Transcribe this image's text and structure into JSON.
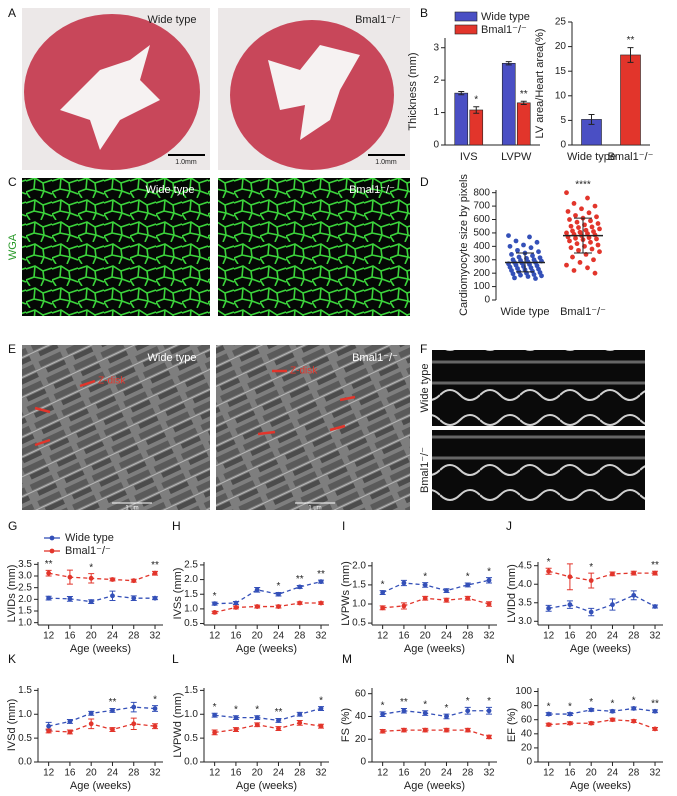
{
  "panel_labels": [
    "A",
    "B",
    "C",
    "D",
    "E",
    "F",
    "G",
    "H",
    "I",
    "J",
    "K",
    "L",
    "M",
    "N"
  ],
  "images": {
    "A": {
      "labels": [
        "Wide type",
        "Bmal1⁻/⁻"
      ],
      "scale_bars": [
        "1.0mm",
        "1.0mm"
      ]
    },
    "C": {
      "side_label": "WGA",
      "labels": [
        "Wide type",
        "Bmal1⁻/⁻"
      ]
    },
    "E": {
      "labels": [
        "Wide type",
        "Bmal1⁻/⁻"
      ],
      "annotations": [
        "Z-disk",
        "Z-disk"
      ],
      "scale_bars": [
        "1 um",
        "1 um"
      ]
    },
    "F": {
      "side_labels": [
        "Wide type",
        "Bmal1⁻/⁻"
      ]
    }
  },
  "chart_data": [
    {
      "type": "bar",
      "ylabel": "Thickness (mm)",
      "categories": [
        "IVS",
        "LVPW"
      ],
      "ylim": [
        0,
        3.3
      ],
      "yticks": [
        0,
        1,
        2,
        3
      ],
      "legend": "top",
      "series": [
        {
          "name": "Wide type",
          "color": "#4a4fc4",
          "values": [
            1.6,
            2.52
          ],
          "errors": [
            0.05,
            0.05
          ]
        },
        {
          "name": "Bmal1⁻/⁻",
          "color": "#e2352b",
          "values": [
            1.08,
            1.3
          ],
          "errors": [
            0.1,
            0.05
          ]
        }
      ],
      "annotations": [
        {
          "category": 0,
          "series": 1,
          "text": "*"
        },
        {
          "category": 1,
          "series": 1,
          "text": "**"
        }
      ]
    },
    {
      "type": "bar",
      "ylabel": "LV area/Heart area(%)",
      "categories": [
        "Wide type",
        "Bmal1⁻/⁻"
      ],
      "ylim": [
        0,
        25
      ],
      "yticks": [
        0,
        5,
        10,
        15,
        20,
        25
      ],
      "values": [
        5.2,
        18.3
      ],
      "errors": [
        1,
        1.5
      ],
      "colors": [
        "#4a4fc4",
        "#e2352b"
      ],
      "annotations": [
        {
          "category": 1,
          "text": "**"
        }
      ]
    },
    {
      "type": "strip",
      "ylabel": "Cardiomyocyte size by pixels",
      "categories": [
        "Wide type",
        "Bmal1⁻/⁻"
      ],
      "ylim": [
        0,
        820
      ],
      "yticks": [
        0,
        100,
        200,
        300,
        400,
        500,
        600,
        700,
        800
      ],
      "colors": [
        "#3450b8",
        "#e2352b"
      ],
      "means": [
        280,
        480
      ],
      "sds": [
        70,
        130
      ],
      "values": [
        [
          480,
          470,
          440,
          430,
          410,
          400,
          390,
          370,
          360,
          350,
          340,
          330,
          320,
          315,
          310,
          300,
          300,
          295,
          290,
          285,
          280,
          280,
          275,
          270,
          265,
          260,
          255,
          250,
          245,
          240,
          235,
          230,
          225,
          220,
          215,
          210,
          205,
          200,
          195,
          190,
          185,
          180,
          175,
          165,
          160
        ],
        [
          800,
          760,
          720,
          700,
          680,
          660,
          650,
          630,
          620,
          610,
          600,
          590,
          580,
          570,
          560,
          550,
          545,
          540,
          530,
          520,
          515,
          510,
          505,
          500,
          495,
          490,
          485,
          480,
          470,
          465,
          460,
          455,
          450,
          440,
          430,
          420,
          410,
          400,
          390,
          380,
          370,
          360,
          340,
          320,
          300,
          280,
          260,
          240,
          220,
          200
        ]
      ],
      "annotations": [
        {
          "category": 1,
          "text": "****"
        }
      ]
    },
    {
      "type": "line",
      "ylabel": "LVIDs (mm)",
      "xlabel": "Age (weeks)",
      "legend": "top-left",
      "x": [
        12,
        16,
        20,
        24,
        28,
        32
      ],
      "xlim": [
        10,
        33.5
      ],
      "xticks": [
        12,
        16,
        20,
        24,
        28,
        32
      ],
      "ylim": [
        0.9,
        3.6
      ],
      "yticks": [
        {
          "value": 1,
          "label": "1.0"
        },
        1.5,
        {
          "value": 2,
          "label": "2.0"
        },
        2.5,
        {
          "value": 3,
          "label": "3.0"
        },
        3.5
      ],
      "series": [
        {
          "name": "Wide type",
          "color": "#3450b8",
          "values": [
            2.05,
            2.02,
            1.9,
            2.15,
            2.05,
            2.05
          ],
          "errors": [
            0.08,
            0.1,
            0.08,
            0.2,
            0.1,
            0.06
          ]
        },
        {
          "name": "Bmal1⁻/⁻",
          "color": "#e2352b",
          "values": [
            3.12,
            2.95,
            2.9,
            2.85,
            2.8,
            3.12
          ],
          "errors": [
            0.12,
            0.3,
            0.2,
            0.06,
            0.06,
            0.08
          ]
        }
      ],
      "annotations": [
        {
          "x": 12,
          "text": "**"
        },
        {
          "x": 20,
          "text": "*"
        },
        {
          "x": 32,
          "text": "**"
        }
      ]
    },
    {
      "type": "line",
      "ylabel": "IVSs (mm)",
      "xlabel": "Age (weeks)",
      "x": [
        12,
        16,
        20,
        24,
        28,
        32
      ],
      "xlim": [
        10,
        33.5
      ],
      "xticks": [
        12,
        16,
        20,
        24,
        28,
        32
      ],
      "ylim": [
        0.45,
        2.6
      ],
      "yticks": [
        0.5,
        {
          "value": 1,
          "label": "1.0"
        },
        1.5,
        {
          "value": 2,
          "label": "2.0"
        },
        2.5
      ],
      "series": [
        {
          "color": "#3450b8",
          "values": [
            1.18,
            1.2,
            1.65,
            1.5,
            1.75,
            1.93
          ],
          "errors": [
            0.05,
            0.05,
            0.08,
            0.06,
            0.05,
            0.05
          ]
        },
        {
          "color": "#e2352b",
          "values": [
            0.88,
            1.05,
            1.08,
            1.08,
            1.2,
            1.2
          ],
          "errors": [
            0.04,
            0.05,
            0.05,
            0.05,
            0.04,
            0.04
          ]
        }
      ],
      "annotations": [
        {
          "x": 12,
          "text": "*"
        },
        {
          "x": 24,
          "text": "*"
        },
        {
          "x": 28,
          "text": "**"
        },
        {
          "x": 32,
          "text": "**"
        }
      ]
    },
    {
      "type": "line",
      "ylabel": "LVPWs (mm)",
      "xlabel": "Age (weeks)",
      "x": [
        12,
        16,
        20,
        24,
        28,
        32
      ],
      "xlim": [
        10,
        33.5
      ],
      "xticks": [
        12,
        16,
        20,
        24,
        28,
        32
      ],
      "ylim": [
        0.45,
        2.1
      ],
      "yticks": [
        0.5,
        {
          "value": 1,
          "label": "1.0"
        },
        1.5,
        {
          "value": 2,
          "label": "2.0"
        }
      ],
      "series": [
        {
          "color": "#3450b8",
          "values": [
            1.3,
            1.55,
            1.5,
            1.35,
            1.5,
            1.62
          ],
          "errors": [
            0.05,
            0.07,
            0.06,
            0.05,
            0.05,
            0.07
          ]
        },
        {
          "color": "#e2352b",
          "values": [
            0.9,
            0.95,
            1.15,
            1.1,
            1.15,
            1.0
          ],
          "errors": [
            0.05,
            0.08,
            0.05,
            0.05,
            0.05,
            0.06
          ]
        }
      ],
      "annotations": [
        {
          "x": 12,
          "text": "*"
        },
        {
          "x": 20,
          "text": "*"
        },
        {
          "x": 28,
          "text": "*"
        },
        {
          "x": 32,
          "text": "*"
        }
      ]
    },
    {
      "type": "line",
      "ylabel": "LVIDd (mm)",
      "xlabel": "Age (weeks)",
      "x": [
        12,
        16,
        20,
        24,
        28,
        32
      ],
      "xlim": [
        10,
        33.5
      ],
      "xticks": [
        12,
        16,
        20,
        24,
        28,
        32
      ],
      "ylim": [
        2.9,
        4.6
      ],
      "yticks": [
        {
          "value": 3,
          "label": "3.0"
        },
        3.5,
        {
          "value": 4,
          "label": "4.0"
        },
        4.5
      ],
      "series": [
        {
          "color": "#3450b8",
          "values": [
            3.35,
            3.45,
            3.25,
            3.45,
            3.7,
            3.4
          ],
          "errors": [
            0.08,
            0.1,
            0.1,
            0.15,
            0.12,
            0.04
          ]
        },
        {
          "color": "#e2352b",
          "values": [
            4.35,
            4.2,
            4.1,
            4.28,
            4.3,
            4.3
          ],
          "errors": [
            0.08,
            0.35,
            0.2,
            0.05,
            0.05,
            0.05
          ]
        }
      ],
      "annotations": [
        {
          "x": 12,
          "text": "*"
        },
        {
          "x": 20,
          "text": "*"
        },
        {
          "x": 32,
          "text": "**"
        }
      ]
    },
    {
      "type": "line",
      "ylabel": "IVSd (mm)",
      "xlabel": "Age (weeks)",
      "x": [
        12,
        16,
        20,
        24,
        28,
        32
      ],
      "xlim": [
        10,
        33.5
      ],
      "xticks": [
        12,
        16,
        20,
        24,
        28,
        32
      ],
      "ylim": [
        0,
        1.55
      ],
      "yticks": [
        {
          "value": 0,
          "label": "0.0"
        },
        0.5,
        {
          "value": 1,
          "label": "1.0"
        },
        1.5
      ],
      "series": [
        {
          "color": "#3450b8",
          "values": [
            0.75,
            0.85,
            1.02,
            1.08,
            1.15,
            1.12
          ],
          "errors": [
            0.08,
            0.04,
            0.04,
            0.04,
            0.1,
            0.06
          ]
        },
        {
          "color": "#e2352b",
          "values": [
            0.65,
            0.63,
            0.8,
            0.68,
            0.8,
            0.75
          ],
          "errors": [
            0.04,
            0.04,
            0.1,
            0.04,
            0.12,
            0.05
          ]
        }
      ],
      "annotations": [
        {
          "x": 24,
          "text": "**"
        },
        {
          "x": 32,
          "text": "*"
        }
      ]
    },
    {
      "type": "line",
      "ylabel": "LVPWd (mm)",
      "xlabel": "Age (weeks)",
      "x": [
        12,
        16,
        20,
        24,
        28,
        32
      ],
      "xlim": [
        10,
        33.5
      ],
      "xticks": [
        12,
        16,
        20,
        24,
        28,
        32
      ],
      "ylim": [
        0,
        1.55
      ],
      "yticks": [
        {
          "value": 0,
          "label": "0.0"
        },
        0.5,
        {
          "value": 1,
          "label": "1.0"
        },
        1.5
      ],
      "series": [
        {
          "color": "#3450b8",
          "values": [
            0.98,
            0.93,
            0.93,
            0.87,
            1.0,
            1.12
          ],
          "errors": [
            0.04,
            0.04,
            0.04,
            0.04,
            0.04,
            0.04
          ]
        },
        {
          "color": "#e2352b",
          "values": [
            0.62,
            0.68,
            0.78,
            0.7,
            0.82,
            0.75
          ],
          "errors": [
            0.05,
            0.04,
            0.04,
            0.04,
            0.05,
            0.04
          ]
        }
      ],
      "annotations": [
        {
          "x": 12,
          "text": "*"
        },
        {
          "x": 16,
          "text": "*"
        },
        {
          "x": 20,
          "text": "*"
        },
        {
          "x": 24,
          "text": "**"
        },
        {
          "x": 32,
          "text": "*"
        }
      ]
    },
    {
      "type": "line",
      "ylabel": "FS (%)",
      "xlabel": "Age (weeks)",
      "x": [
        12,
        16,
        20,
        24,
        28,
        32
      ],
      "xlim": [
        10,
        33.5
      ],
      "xticks": [
        12,
        16,
        20,
        24,
        28,
        32
      ],
      "ylim": [
        0,
        65
      ],
      "yticks": [
        0,
        20,
        40,
        60
      ],
      "series": [
        {
          "color": "#3450b8",
          "values": [
            42,
            45,
            43,
            40,
            45,
            45
          ],
          "errors": [
            2,
            2,
            2,
            2,
            3,
            3
          ]
        },
        {
          "color": "#e2352b",
          "values": [
            27,
            28,
            28,
            28,
            28,
            22
          ],
          "errors": [
            1.5,
            1.5,
            1.5,
            1.5,
            1.5,
            1.5
          ]
        }
      ],
      "annotations": [
        {
          "x": 12,
          "text": "*"
        },
        {
          "x": 16,
          "text": "**"
        },
        {
          "x": 20,
          "text": "*"
        },
        {
          "x": 24,
          "text": "*"
        },
        {
          "x": 28,
          "text": "*"
        },
        {
          "x": 32,
          "text": "*"
        }
      ]
    },
    {
      "type": "line",
      "ylabel": "EF (%)",
      "xlabel": "Age (weeks)",
      "x": [
        12,
        16,
        20,
        24,
        28,
        32
      ],
      "xlim": [
        10,
        33.5
      ],
      "xticks": [
        12,
        16,
        20,
        24,
        28,
        32
      ],
      "ylim": [
        0,
        105
      ],
      "yticks": [
        0,
        20,
        40,
        60,
        80,
        100
      ],
      "series": [
        {
          "color": "#3450b8",
          "values": [
            68,
            68,
            74,
            72,
            76,
            72
          ],
          "errors": [
            2,
            2,
            2,
            2,
            2,
            2
          ]
        },
        {
          "color": "#e2352b",
          "values": [
            53,
            55,
            55,
            60,
            58,
            47
          ],
          "errors": [
            2,
            2,
            2,
            2,
            2,
            2
          ]
        }
      ],
      "annotations": [
        {
          "x": 12,
          "text": "*"
        },
        {
          "x": 16,
          "text": "*"
        },
        {
          "x": 20,
          "text": "*"
        },
        {
          "x": 24,
          "text": "*"
        },
        {
          "x": 28,
          "text": "*"
        },
        {
          "x": 32,
          "text": "**"
        }
      ]
    }
  ]
}
